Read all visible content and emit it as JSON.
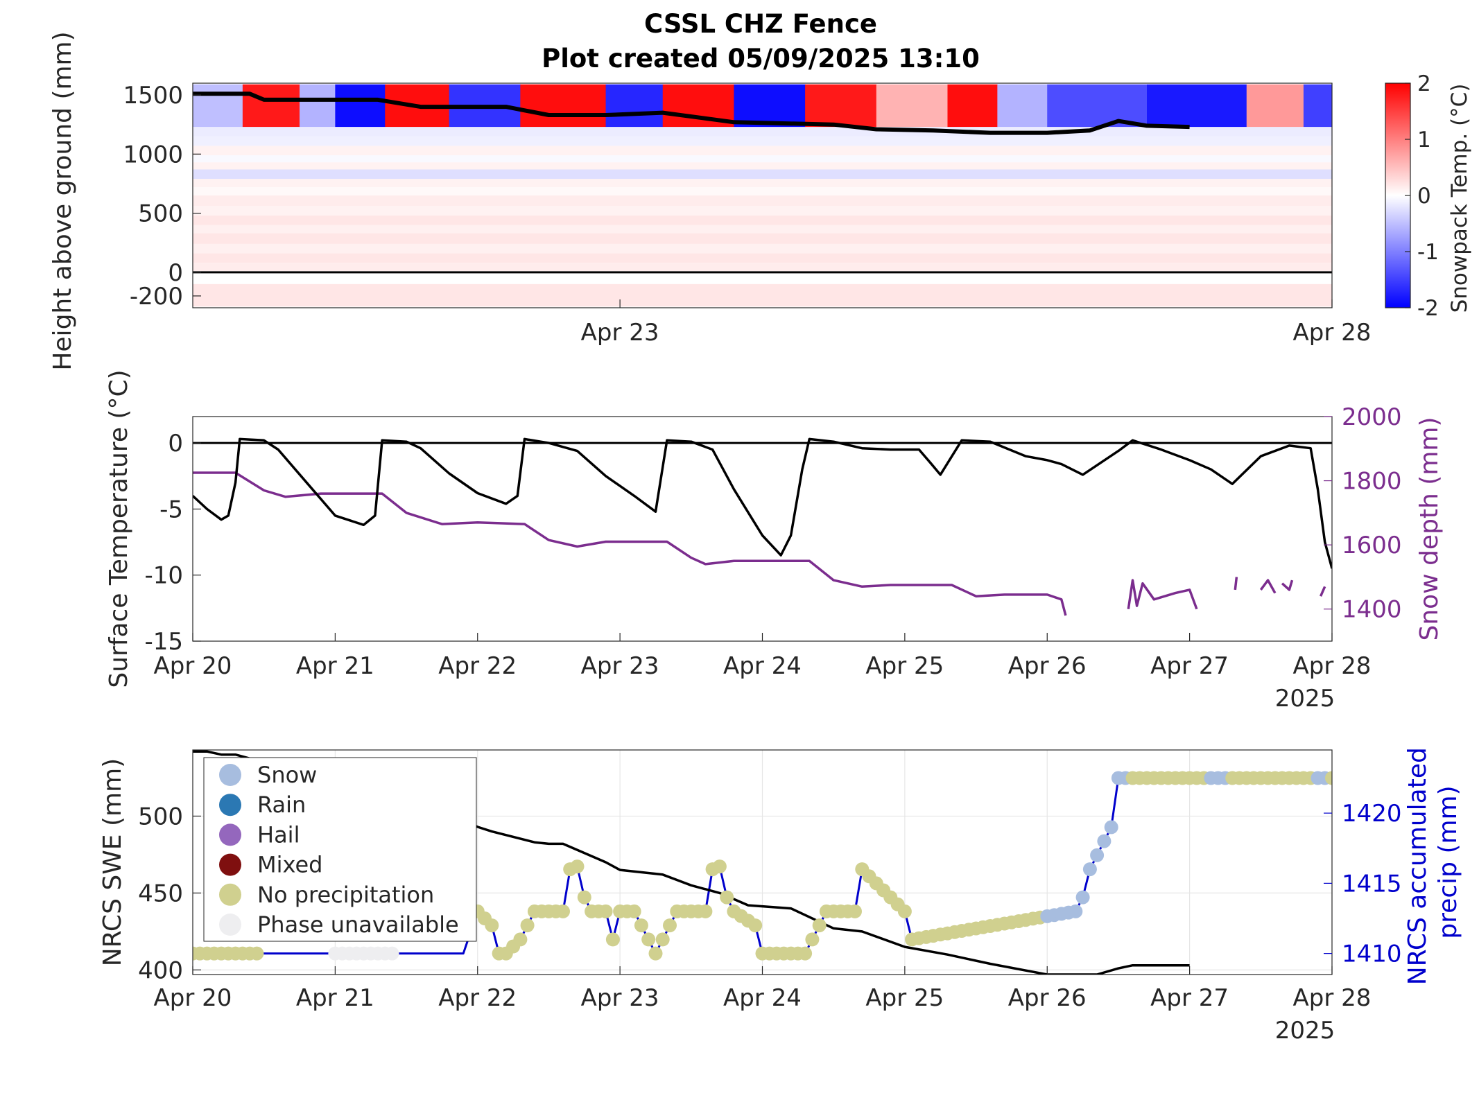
{
  "figure": {
    "title_line1": "CSSL CHZ Fence",
    "title_line2": "Plot created 05/09/2025 13:10",
    "year_label": "2025"
  },
  "colors": {
    "snow_depth": "#7B2D8E",
    "accum_precip": "#0000CC",
    "snow": "#A7BDDF",
    "rain": "#2B78B3",
    "hail": "#9467BD",
    "mixed": "#7F0F0F",
    "no_precip": "#D0D08F",
    "phase_unavailable": "#EEEEF0"
  },
  "chart_data": [
    {
      "type": "heatmap",
      "ylabel": "Height above ground (mm)",
      "colorbar_label": "Snowpack Temp. (°C)",
      "colorbar_ticks": [
        2,
        1,
        0,
        -1,
        -2
      ],
      "clim": [
        -2,
        2
      ],
      "ylim": [
        -300,
        1600
      ],
      "yticks": [
        1500,
        1000,
        500,
        0,
        -200
      ],
      "xticks": [
        "Apr 23",
        "Apr 28"
      ],
      "xlim_days": [
        20.0,
        28.0
      ],
      "surface_depth": {
        "x": [
          20.0,
          20.4,
          20.5,
          20.9,
          21.3,
          21.6,
          21.8,
          22.2,
          22.5,
          22.9,
          23.3,
          23.8,
          24.5,
          24.8,
          25.2,
          25.6,
          26.0,
          26.3,
          26.5,
          26.7,
          27.0
        ],
        "y": [
          1510,
          1510,
          1460,
          1460,
          1460,
          1400,
          1400,
          1400,
          1330,
          1330,
          1350,
          1270,
          1250,
          1210,
          1200,
          1180,
          1180,
          1200,
          1280,
          1240,
          1230
        ]
      },
      "temp_bands": [
        {
          "x0": 20.0,
          "x1": 20.35,
          "t": -0.5
        },
        {
          "x0": 20.35,
          "x1": 20.75,
          "t": 1.8
        },
        {
          "x0": 20.75,
          "x1": 21.0,
          "t": -0.6
        },
        {
          "x0": 21.0,
          "x1": 21.35,
          "t": -1.9
        },
        {
          "x0": 21.35,
          "x1": 21.8,
          "t": 1.9
        },
        {
          "x0": 21.8,
          "x1": 22.3,
          "t": -1.6
        },
        {
          "x0": 22.3,
          "x1": 22.9,
          "t": 1.9
        },
        {
          "x0": 22.9,
          "x1": 23.3,
          "t": -1.7
        },
        {
          "x0": 23.3,
          "x1": 23.8,
          "t": 1.9
        },
        {
          "x0": 23.8,
          "x1": 24.3,
          "t": -1.9
        },
        {
          "x0": 24.3,
          "x1": 24.8,
          "t": 1.8
        },
        {
          "x0": 24.8,
          "x1": 25.3,
          "t": 0.6
        },
        {
          "x0": 25.3,
          "x1": 25.65,
          "t": 1.9
        },
        {
          "x0": 25.65,
          "x1": 26.0,
          "t": -0.6
        },
        {
          "x0": 26.0,
          "x1": 26.7,
          "t": -1.4
        },
        {
          "x0": 26.7,
          "x1": 27.4,
          "t": -1.8
        },
        {
          "x0": 27.4,
          "x1": 27.8,
          "t": 0.8
        },
        {
          "x0": 27.8,
          "x1": 28.0,
          "t": -1.5
        }
      ]
    },
    {
      "type": "line",
      "ylabel": "Surface Temperature (°C)",
      "y2label": "Snow depth (mm)",
      "ylim": [
        -15,
        2
      ],
      "yticks": [
        0,
        -5,
        -10,
        -15
      ],
      "y2lim": [
        1300,
        2000
      ],
      "y2ticks": [
        2000,
        1800,
        1600,
        1400
      ],
      "xticks": [
        "Apr 20",
        "Apr 21",
        "Apr 22",
        "Apr 23",
        "Apr 24",
        "Apr 25",
        "Apr 26",
        "Apr 27",
        "Apr 28"
      ],
      "xlim_days": [
        20.0,
        28.0
      ],
      "series": [
        {
          "axis": "left",
          "x": [
            20.0,
            20.1,
            20.2,
            20.25,
            20.3,
            20.33,
            20.5,
            20.6,
            20.8,
            21.0,
            21.2,
            21.28,
            21.33,
            21.5,
            21.6,
            21.8,
            22.0,
            22.2,
            22.28,
            22.33,
            22.5,
            22.7,
            22.9,
            23.1,
            23.25,
            23.33,
            23.5,
            23.65,
            23.8,
            24.0,
            24.13,
            24.2,
            24.28,
            24.33,
            24.5,
            24.7,
            24.9,
            25.1,
            25.18,
            25.25,
            25.4,
            25.6,
            25.85,
            26.0,
            26.1,
            26.25,
            26.5,
            26.6,
            26.8,
            27.0,
            27.15,
            27.3,
            27.5,
            27.7,
            27.85,
            27.9,
            27.95,
            28.0
          ],
          "y": [
            -4.0,
            -5.0,
            -5.8,
            -5.5,
            -3.0,
            0.3,
            0.2,
            -0.5,
            -3.0,
            -5.5,
            -6.2,
            -5.5,
            0.2,
            0.1,
            -0.4,
            -2.3,
            -3.8,
            -4.6,
            -4.0,
            0.3,
            0.0,
            -0.6,
            -2.5,
            -4.0,
            -5.2,
            0.2,
            0.1,
            -0.5,
            -3.5,
            -7.0,
            -8.5,
            -7.0,
            -2.0,
            0.3,
            0.1,
            -0.4,
            -0.5,
            -0.5,
            -1.5,
            -2.4,
            0.2,
            0.1,
            -1.0,
            -1.3,
            -1.6,
            -2.4,
            -0.6,
            0.2,
            -0.5,
            -1.3,
            -2.0,
            -3.1,
            -1.0,
            -0.2,
            -0.4,
            -3.5,
            -7.5,
            -9.5
          ]
        },
        {
          "axis": "right",
          "x": [
            20.0,
            20.3,
            20.5,
            20.65,
            20.9,
            21.33,
            21.5,
            21.75,
            22.0,
            22.33,
            22.5,
            22.7,
            22.9,
            23.33,
            23.5,
            23.6,
            23.8,
            24.0,
            24.33,
            24.5,
            24.7,
            24.9,
            25.33,
            25.5,
            25.7,
            26.0,
            26.1,
            26.13
          ],
          "y": [
            1825,
            1825,
            1770,
            1750,
            1760,
            1760,
            1700,
            1665,
            1670,
            1665,
            1615,
            1595,
            1610,
            1610,
            1560,
            1540,
            1550,
            1550,
            1550,
            1490,
            1470,
            1475,
            1475,
            1440,
            1445,
            1445,
            1430,
            1380
          ]
        }
      ]
    },
    {
      "type": "line",
      "ylabel": "NRCS SWE (mm)",
      "y2label": "NRCS accumulated precip (mm)",
      "ylim": [
        397,
        543
      ],
      "yticks": [
        500,
        450,
        400
      ],
      "y2lim": [
        1408.5,
        1424.5
      ],
      "y2ticks": [
        1420,
        1415,
        1410
      ],
      "xticks": [
        "Apr 20",
        "Apr 21",
        "Apr 22",
        "Apr 23",
        "Apr 24",
        "Apr 25",
        "Apr 26",
        "Apr 27",
        "Apr 28"
      ],
      "xlim_days": [
        20.0,
        28.0
      ],
      "legend": {
        "location": "top-left",
        "entries": [
          "Snow",
          "Rain",
          "Hail",
          "Mixed",
          "No precipitation",
          "Phase unavailable"
        ]
      },
      "series": [
        {
          "name": "NRCS SWE",
          "axis": "left",
          "x": [
            20.0,
            20.1,
            20.2,
            20.3,
            20.5,
            21.0,
            21.5,
            21.95,
            22.0,
            22.1,
            22.4,
            22.5,
            22.6,
            22.9,
            23.0,
            23.3,
            23.5,
            23.7,
            23.9,
            24.2,
            24.5,
            24.7,
            25.0,
            25.3,
            25.6,
            26.0,
            26.35,
            26.5,
            26.6,
            27.0
          ],
          "y": [
            542,
            542,
            540,
            540,
            535,
            520,
            505,
            495,
            493,
            490,
            483,
            482,
            482,
            470,
            465,
            462,
            455,
            450,
            442,
            440,
            427,
            425,
            415,
            410,
            404,
            397,
            397,
            401,
            403,
            403
          ]
        },
        {
          "name": "NRCS accumulated precip",
          "axis": "right",
          "x": [
            20.0,
            21.9,
            22.0,
            22.1,
            22.15,
            22.2,
            22.3,
            22.4,
            22.45,
            22.5,
            22.6,
            22.65,
            22.7,
            22.75,
            22.8,
            22.9,
            22.95,
            23.0,
            23.1,
            23.2,
            23.25,
            23.3,
            23.4,
            23.5,
            23.6,
            23.65,
            23.7,
            23.75,
            23.8,
            23.95,
            24.0,
            24.3,
            24.35,
            24.45,
            24.65,
            24.7,
            24.75,
            25.0,
            25.05,
            26.2,
            26.25,
            26.3,
            26.35,
            26.4,
            26.45,
            26.5,
            28.0
          ],
          "y": [
            1410,
            1410,
            1413,
            1412,
            1410,
            1410,
            1411,
            1413,
            1413,
            1413,
            1413,
            1416,
            1416.2,
            1414,
            1413,
            1413,
            1411,
            1413,
            1413,
            1411,
            1410,
            1411,
            1413,
            1413,
            1413,
            1416,
            1416.2,
            1414,
            1413,
            1412,
            1410,
            1410,
            1411,
            1413,
            1413,
            1416,
            1415.5,
            1413,
            1411,
            1413,
            1414,
            1416,
            1417,
            1418,
            1419,
            1422.5,
            1422.5
          ]
        }
      ]
    }
  ]
}
